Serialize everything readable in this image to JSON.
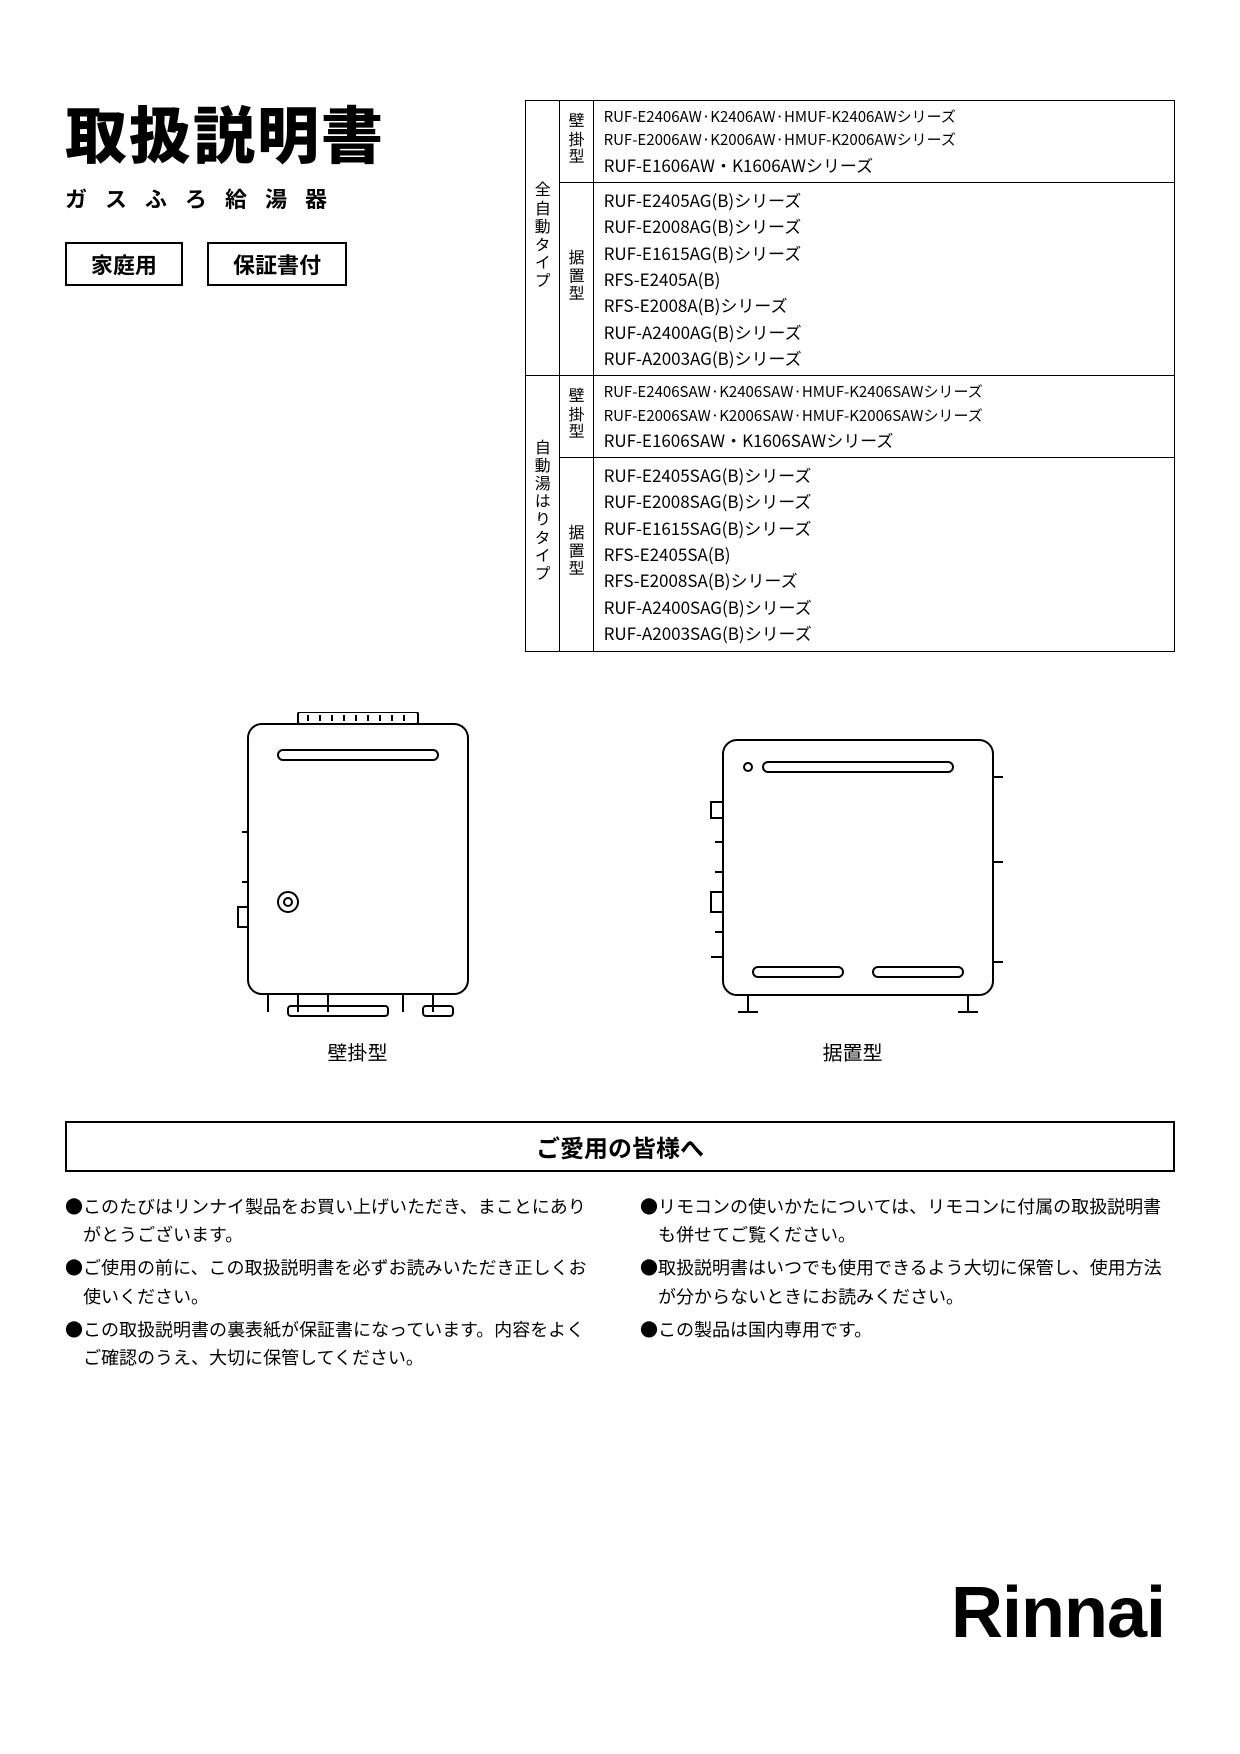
{
  "title": "取扱説明書",
  "subtitle": "ガスふろ給湯器",
  "badges": [
    "家庭用",
    "保証書付"
  ],
  "table": {
    "groups": [
      {
        "type_label": "全自動タイプ",
        "rows": [
          {
            "mount_label": "壁掛型",
            "lines": [
              {
                "text": "RUF-E2406AW·K2406AW·HMUF-K2406AWシリーズ",
                "small": true
              },
              {
                "text": "RUF-E2006AW·K2006AW·HMUF-K2006AWシリーズ",
                "small": true
              },
              {
                "text": "RUF-E1606AW・K1606AWシリーズ",
                "small": false
              }
            ]
          },
          {
            "mount_label": "据置型",
            "lines": [
              {
                "text": "RUF-E2405AG(B)シリーズ",
                "small": false
              },
              {
                "text": "RUF-E2008AG(B)シリーズ",
                "small": false
              },
              {
                "text": "RUF-E1615AG(B)シリーズ",
                "small": false
              },
              {
                "text": "RFS-E2405A(B)",
                "small": false
              },
              {
                "text": "RFS-E2008A(B)シリーズ",
                "small": false
              },
              {
                "text": "RUF-A2400AG(B)シリーズ",
                "small": false
              },
              {
                "text": "RUF-A2003AG(B)シリーズ",
                "small": false
              }
            ]
          }
        ]
      },
      {
        "type_label": "自動湯はりタイプ",
        "rows": [
          {
            "mount_label": "壁掛型",
            "lines": [
              {
                "text": "RUF-E2406SAW·K2406SAW·HMUF-K2406SAWシリーズ",
                "small": true
              },
              {
                "text": "RUF-E2006SAW·K2006SAW·HMUF-K2006SAWシリーズ",
                "small": true
              },
              {
                "text": "RUF-E1606SAW・K1606SAWシリーズ",
                "small": false
              }
            ]
          },
          {
            "mount_label": "据置型",
            "lines": [
              {
                "text": "RUF-E2405SAG(B)シリーズ",
                "small": false
              },
              {
                "text": "RUF-E2008SAG(B)シリーズ",
                "small": false
              },
              {
                "text": "RUF-E1615SAG(B)シリーズ",
                "small": false
              },
              {
                "text": "RFS-E2405SA(B)",
                "small": false
              },
              {
                "text": "RFS-E2008SA(B)シリーズ",
                "small": false
              },
              {
                "text": "RUF-A2400SAG(B)シリーズ",
                "small": false
              },
              {
                "text": "RUF-A2003SAG(B)シリーズ",
                "small": false
              }
            ]
          }
        ]
      }
    ]
  },
  "diagrams": {
    "left_caption": "壁掛型",
    "right_caption": "据置型"
  },
  "message_heading": "ご愛用の皆様へ",
  "bullets": {
    "left": [
      "このたびはリンナイ製品をお買い上げいただき、まことにありがとうございます。",
      "ご使用の前に、この取扱説明書を必ずお読みいただき正しくお使いください。",
      "この取扱説明書の裏表紙が保証書になっています。内容をよくご確認のうえ、大切に保管してください。"
    ],
    "right": [
      "リモコンの使いかたについては、リモコンに付属の取扱説明書も併せてご覧ください。",
      "取扱説明書はいつでも使用できるよう大切に保管し、使用方法が分からないときにお読みください。",
      "この製品は国内専用です。"
    ]
  },
  "brand": "Rinnai",
  "colors": {
    "text": "#000000",
    "background": "#ffffff",
    "border": "#000000"
  }
}
